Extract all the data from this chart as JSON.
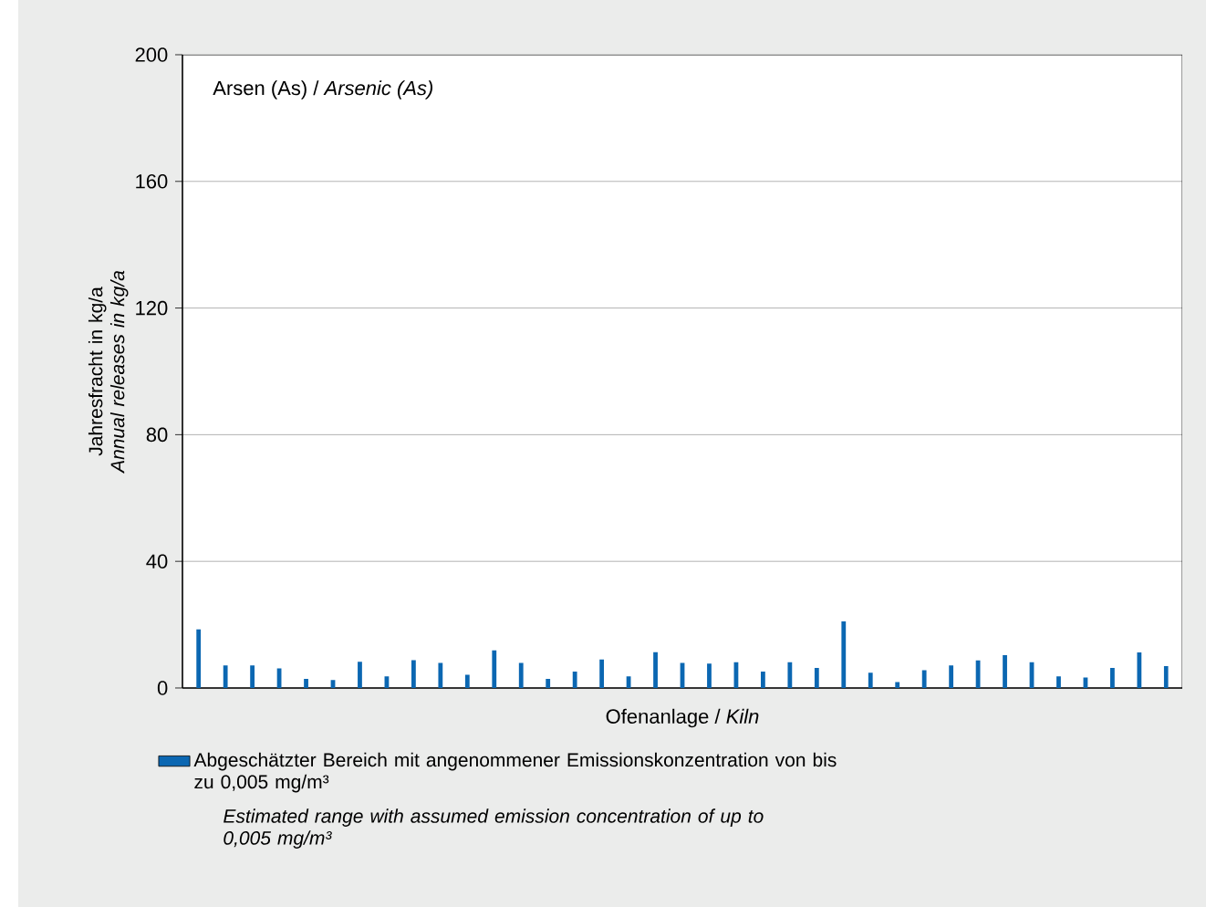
{
  "chart_data": {
    "type": "bar",
    "title": "Arsen (As) / *Arsenic (As)*",
    "xlabel": "Ofenanlage / *Kiln*",
    "ylabel": "Jahresfracht in kg/a *Annual releases in kg/a*",
    "categories": [
      null,
      null,
      null,
      null,
      null,
      null,
      null,
      null,
      null,
      null,
      null,
      null,
      null,
      null,
      null,
      null,
      null,
      null,
      null,
      null,
      null,
      null,
      null,
      null,
      null,
      null,
      null,
      null,
      null,
      null,
      null,
      null,
      null,
      null,
      null,
      null,
      null
    ],
    "series": [
      {
        "name": "Abgeschätzter Bereich mit angenommener Emissionskonzentration von bis zu 0,005 mg/m³",
        "color": "#0b67b2",
        "values": [
          18.5,
          7.1,
          7.1,
          6.2,
          2.9,
          2.5,
          8.3,
          3.7,
          8.8,
          7.9,
          4.2,
          11.9,
          7.9,
          2.9,
          5.2,
          9,
          3.7,
          11.3,
          7.9,
          7.7,
          8.1,
          5.2,
          8.1,
          6.3,
          21,
          4.8,
          1.9,
          5.6,
          7.1,
          8.7,
          10.4,
          8.1,
          3.7,
          3.3,
          6.3,
          11.2,
          6.9
        ]
      }
    ],
    "annotations": [
      "*Estimated range with assumed emission concentration of up to 0,005 mg/m³*"
    ],
    "ylim": [
      0,
      200
    ],
    "yticks": [
      0,
      40,
      80,
      120,
      160,
      200
    ],
    "grid": "y",
    "legend": "bottom"
  }
}
